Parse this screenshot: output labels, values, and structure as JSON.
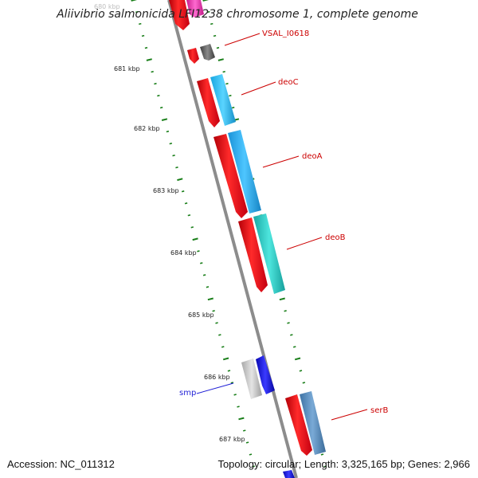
{
  "title": "Aliivibrio salmonicida LFI1238 chromosome 1, complete genome",
  "ticks": {
    "partial_top": "680 kbp",
    "labels": [
      "681 kbp",
      "682 kbp",
      "683 kbp",
      "684 kbp",
      "685 kbp",
      "686 kbp",
      "687 kbp"
    ]
  },
  "genes": {
    "vsal": "VSAL_I0618",
    "deoC": "deoC",
    "deoA": "deoA",
    "deoB": "deoB",
    "serB": "serB",
    "smp": "smp"
  },
  "footer": {
    "accession": "Accession: NC_011312",
    "summary": "Topology: circular; Length: 3,325,165 bp; Genes: 2,966"
  },
  "colors": {
    "backbone": "#8c8c8c",
    "tick_green": "#1a7f1a",
    "cds_red": "#e8101a",
    "gene_label_red": "#cc0000",
    "gene_label_blue": "#1f1fd6",
    "deoC_fill": "#29b8e8",
    "deoA_fill": "#1aa6e8",
    "deoB_fill": "#2cc8c0",
    "serB_fill": "#4e86b8",
    "vsal_fill": "#555555",
    "smp_fill": "#1010e0",
    "smp_gray": "#bcbcbc",
    "pink": "#e83ab0"
  }
}
